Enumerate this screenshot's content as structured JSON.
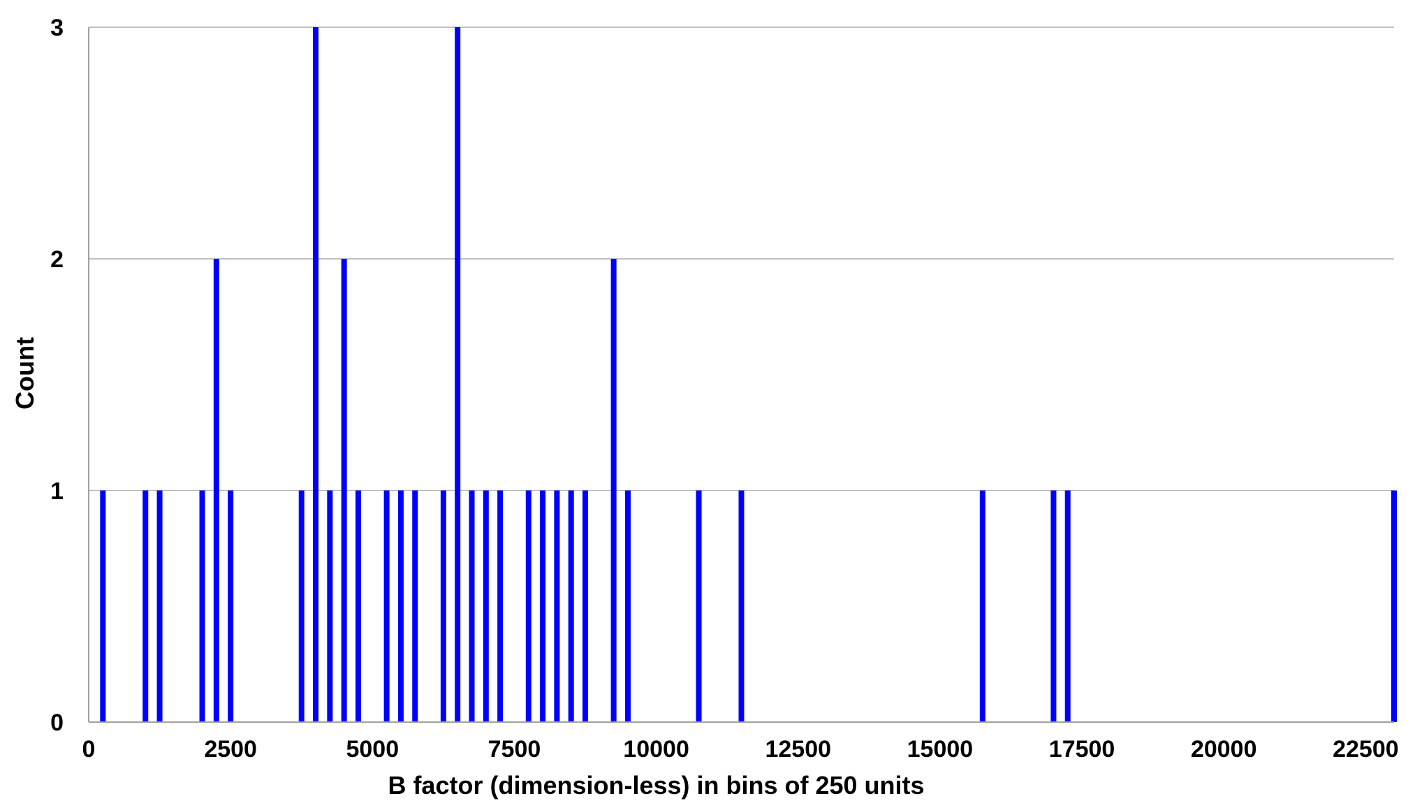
{
  "chart_data": {
    "type": "bar",
    "title": "",
    "xlabel": "B factor (dimension-less) in bins of 250 units",
    "ylabel": "Count",
    "xlim": [
      0,
      23000
    ],
    "ylim": [
      0,
      3
    ],
    "x_ticks": [
      0,
      2500,
      5000,
      7500,
      10000,
      12500,
      15000,
      17500,
      20000,
      22500
    ],
    "x_tick_labels": [
      "0",
      "2500",
      "5000",
      "7500",
      "10000",
      "12500",
      "15000",
      "17500",
      "20000",
      "22500"
    ],
    "y_ticks": [
      0,
      1,
      2,
      3
    ],
    "y_tick_labels": [
      "0",
      "1",
      "2",
      "3"
    ],
    "grid": "horizontal",
    "legend": "none",
    "bar_color": "#0000ff",
    "gridline_color": "#c0c0c0",
    "x": [
      250,
      1000,
      1250,
      2000,
      2250,
      2500,
      3750,
      4000,
      4250,
      4500,
      4750,
      5250,
      5500,
      5750,
      6250,
      6500,
      6750,
      7000,
      7250,
      7750,
      8000,
      8250,
      8500,
      8750,
      9250,
      9500,
      10750,
      11500,
      15750,
      17000,
      17250,
      23000
    ],
    "values": [
      1,
      1,
      1,
      1,
      2,
      1,
      1,
      3,
      1,
      2,
      1,
      1,
      1,
      1,
      1,
      3,
      1,
      1,
      1,
      1,
      1,
      1,
      1,
      1,
      2,
      1,
      1,
      1,
      1,
      1,
      1,
      1
    ]
  }
}
